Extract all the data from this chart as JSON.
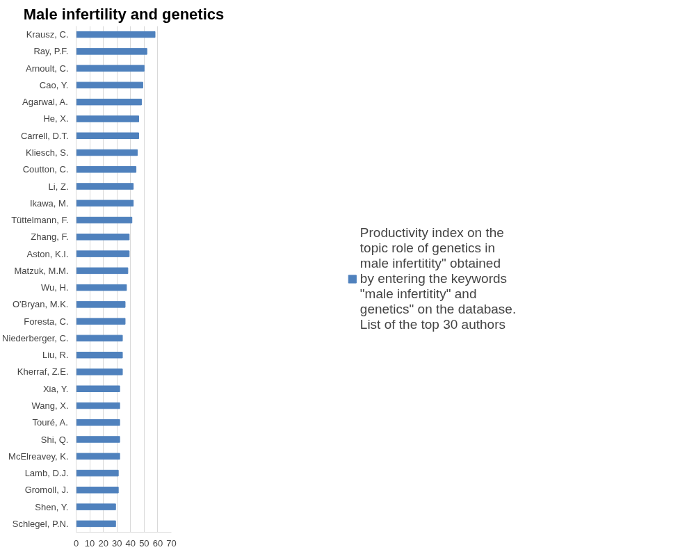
{
  "chart_data": {
    "type": "bar",
    "orientation": "horizontal",
    "title": "Male infertility and genetics",
    "categories": [
      "Krausz, C.",
      "Ray, P.F.",
      "Arnoult, C.",
      "Cao, Y.",
      "Agarwal, A.",
      "He, X.",
      "Carrell, D.T.",
      "Kliesch, S.",
      "Coutton, C.",
      "Li, Z.",
      "Ikawa, M.",
      "Tüttelmann, F.",
      "Zhang, F.",
      "Aston, K.I.",
      "Matzuk, M.M.",
      "Wu, H.",
      "O'Bryan, M.K.",
      "Foresta, C.",
      "Niederberger, C.",
      "Liu, R.",
      "Kherraf, Z.E.",
      "Xia, Y.",
      "Wang, X.",
      "Touré, A.",
      "Shi, Q.",
      "McElreavey, K.",
      "Lamb, D.J.",
      "Gromoll, J.",
      "Shen, Y.",
      "Schlegel, P.N."
    ],
    "series": [
      {
        "name": "Productivity index on the topic role of genetics in male infertitity\" obtained by entering the keywords \"male infertitity\" and genetics\" on the database. List of the top 30 authors",
        "color": "#4f81bd",
        "values": [
          58,
          52,
          50,
          49,
          48,
          46,
          46,
          45,
          44,
          42,
          42,
          41,
          39,
          39,
          38,
          37,
          36,
          36,
          34,
          34,
          34,
          32,
          32,
          32,
          32,
          32,
          31,
          31,
          29,
          29
        ]
      }
    ],
    "xlim": [
      0,
      70
    ],
    "xticks": [
      0,
      10,
      20,
      30,
      40,
      50,
      60,
      70
    ],
    "grid": "x",
    "legend": "right"
  }
}
